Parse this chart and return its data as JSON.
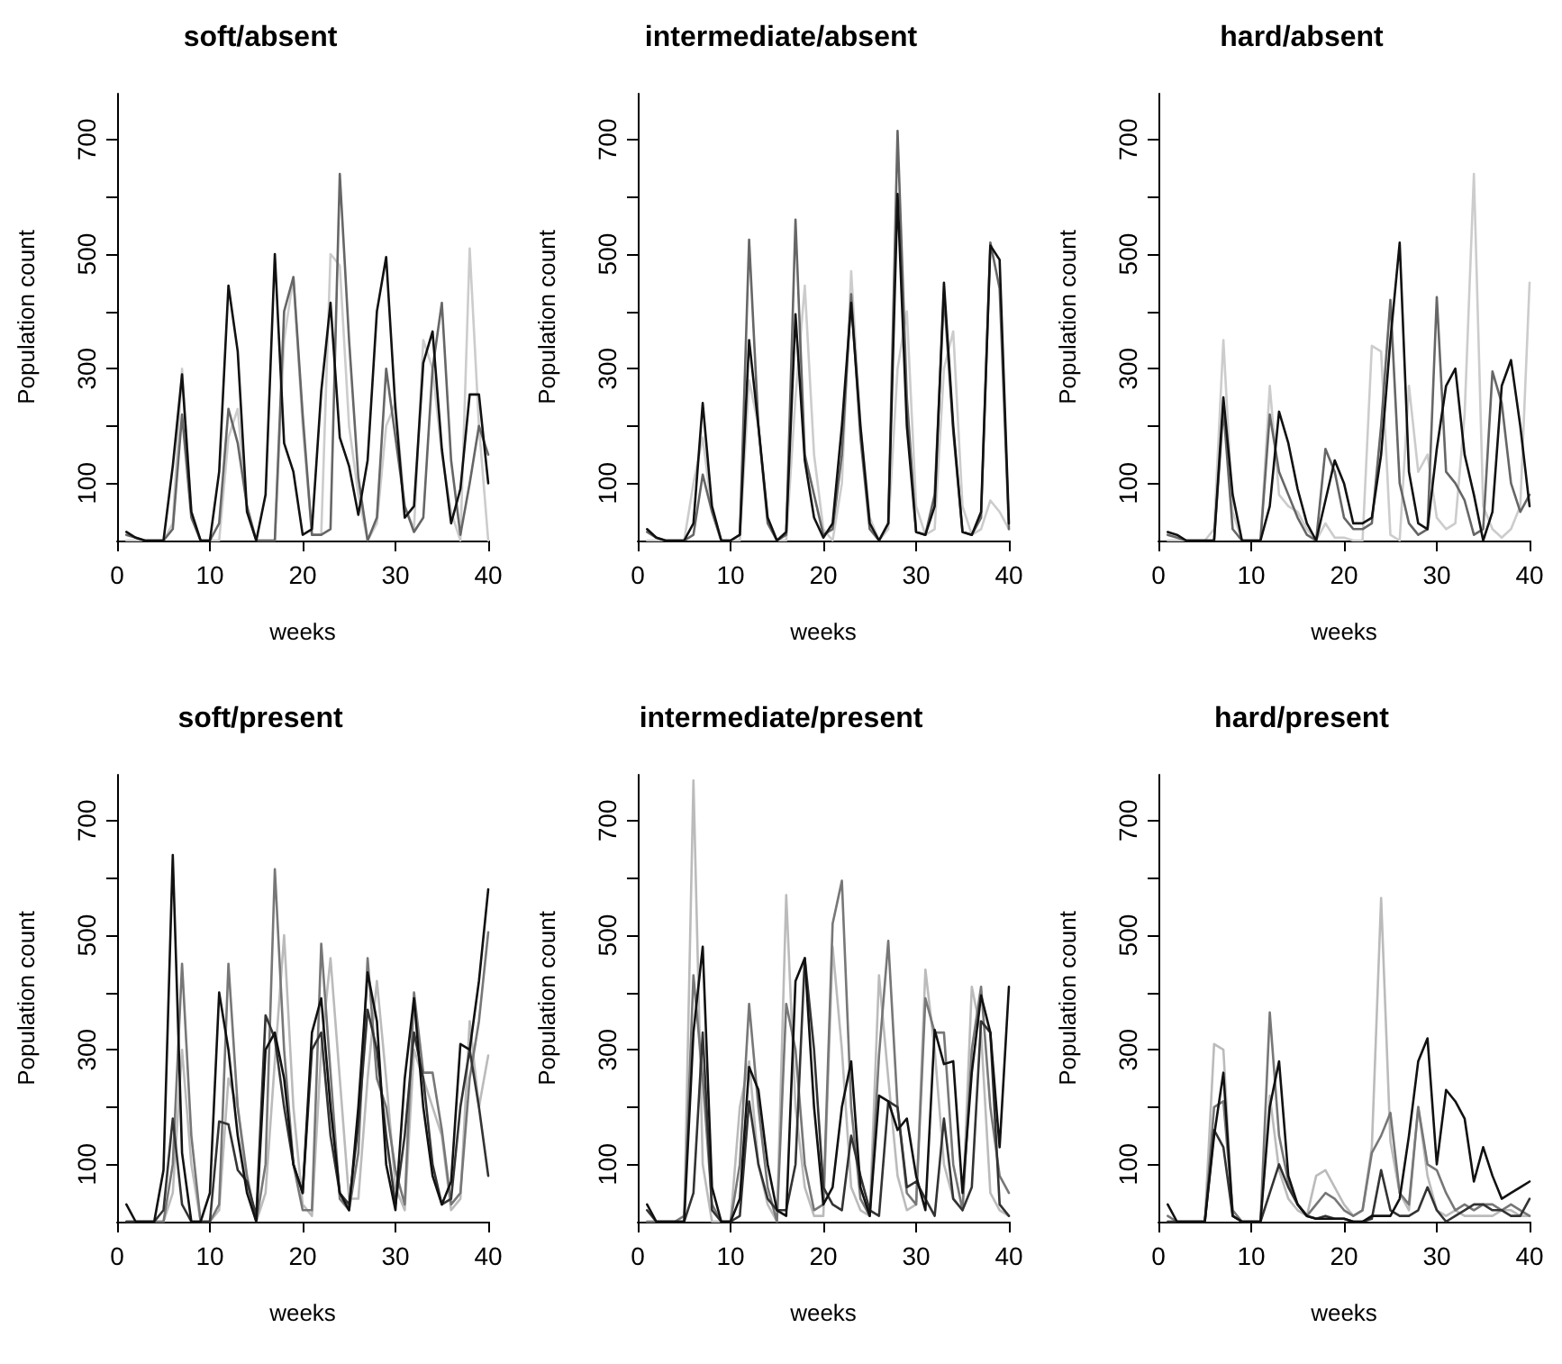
{
  "chart_data": [
    {
      "type": "line",
      "title": "soft/absent",
      "xlabel": "weeks",
      "ylabel": "Population count",
      "x": [
        1,
        2,
        3,
        4,
        5,
        6,
        7,
        8,
        9,
        10,
        11,
        12,
        13,
        14,
        15,
        16,
        17,
        18,
        19,
        20,
        21,
        22,
        23,
        24,
        25,
        26,
        27,
        28,
        29,
        30,
        31,
        32,
        33,
        34,
        35,
        36,
        37,
        38,
        39,
        40
      ],
      "xlim": [
        0,
        40
      ],
      "xticks": [
        0,
        10,
        20,
        30,
        40
      ],
      "ylim": [
        0,
        780
      ],
      "yticks": [
        100,
        {
          "value": 200,
          "label": null
        },
        300,
        {
          "value": 400,
          "label": null
        },
        500,
        {
          "value": 600,
          "label": null
        },
        700
      ],
      "series": [
        {
          "color": "#cccccc",
          "values": [
            0,
            0,
            0,
            0,
            0,
            30,
            300,
            50,
            0,
            0,
            0,
            180,
            230,
            50,
            0,
            0,
            0,
            350,
            460,
            200,
            10,
            10,
            500,
            480,
            200,
            80,
            0,
            30,
            200,
            240,
            60,
            20,
            350,
            300,
            150,
            50,
            0,
            510,
            200,
            0
          ]
        },
        {
          "color": "#666666",
          "values": [
            10,
            5,
            0,
            0,
            0,
            20,
            220,
            40,
            0,
            0,
            30,
            230,
            170,
            60,
            0,
            0,
            0,
            400,
            460,
            220,
            10,
            10,
            20,
            640,
            350,
            110,
            0,
            40,
            300,
            180,
            60,
            15,
            40,
            300,
            415,
            140,
            10,
            100,
            200,
            150
          ]
        },
        {
          "color": "#111111",
          "values": [
            15,
            5,
            0,
            0,
            0,
            130,
            290,
            50,
            0,
            0,
            120,
            445,
            330,
            50,
            0,
            80,
            500,
            170,
            120,
            10,
            20,
            260,
            415,
            180,
            130,
            45,
            140,
            400,
            495,
            230,
            40,
            60,
            310,
            365,
            160,
            30,
            90,
            255,
            255,
            100
          ]
        }
      ]
    },
    {
      "type": "line",
      "title": "intermediate/absent",
      "xlabel": "weeks",
      "ylabel": "Population count",
      "x": [
        1,
        2,
        3,
        4,
        5,
        6,
        7,
        8,
        9,
        10,
        11,
        12,
        13,
        14,
        15,
        16,
        17,
        18,
        19,
        20,
        21,
        22,
        23,
        24,
        25,
        26,
        27,
        28,
        29,
        30,
        31,
        32,
        33,
        34,
        35,
        36,
        37,
        38,
        39,
        40
      ],
      "xlim": [
        0,
        40
      ],
      "xticks": [
        0,
        10,
        20,
        30,
        40
      ],
      "ylim": [
        0,
        780
      ],
      "yticks": [
        100,
        {
          "value": 200,
          "label": null
        },
        300,
        {
          "value": 400,
          "label": null
        },
        500,
        {
          "value": 600,
          "label": null
        },
        700
      ],
      "series": [
        {
          "color": "#cccccc",
          "values": [
            0,
            0,
            0,
            0,
            0,
            100,
            180,
            50,
            0,
            0,
            0,
            280,
            200,
            40,
            0,
            0,
            250,
            445,
            150,
            20,
            0,
            100,
            470,
            200,
            40,
            0,
            20,
            300,
            400,
            60,
            10,
            20,
            300,
            365,
            60,
            10,
            20,
            70,
            50,
            20
          ]
        },
        {
          "color": "#666666",
          "values": [
            15,
            5,
            0,
            0,
            0,
            10,
            115,
            50,
            0,
            0,
            10,
            525,
            200,
            30,
            0,
            10,
            560,
            150,
            80,
            10,
            20,
            150,
            430,
            180,
            20,
            0,
            30,
            715,
            250,
            15,
            10,
            80,
            430,
            190,
            15,
            10,
            40,
            520,
            440,
            20
          ]
        },
        {
          "color": "#111111",
          "values": [
            20,
            5,
            0,
            0,
            0,
            30,
            240,
            60,
            0,
            0,
            10,
            350,
            200,
            40,
            0,
            15,
            395,
            140,
            40,
            5,
            30,
            200,
            415,
            200,
            30,
            0,
            30,
            605,
            200,
            15,
            10,
            60,
            450,
            200,
            15,
            10,
            50,
            515,
            490,
            30
          ]
        }
      ]
    },
    {
      "type": "line",
      "title": "hard/absent",
      "xlabel": "weeks",
      "ylabel": "Population count",
      "x": [
        1,
        2,
        3,
        4,
        5,
        6,
        7,
        8,
        9,
        10,
        11,
        12,
        13,
        14,
        15,
        16,
        17,
        18,
        19,
        20,
        21,
        22,
        23,
        24,
        25,
        26,
        27,
        28,
        29,
        30,
        31,
        32,
        33,
        34,
        35,
        36,
        37,
        38,
        39,
        40
      ],
      "xlim": [
        0,
        40
      ],
      "xticks": [
        0,
        10,
        20,
        30,
        40
      ],
      "ylim": [
        0,
        780
      ],
      "yticks": [
        100,
        {
          "value": 200,
          "label": null
        },
        300,
        {
          "value": 400,
          "label": null
        },
        500,
        {
          "value": 600,
          "label": null
        },
        700
      ],
      "series": [
        {
          "color": "#cccccc",
          "values": [
            0,
            0,
            0,
            0,
            0,
            20,
            350,
            50,
            0,
            0,
            0,
            270,
            80,
            60,
            50,
            20,
            0,
            30,
            5,
            5,
            0,
            0,
            340,
            330,
            10,
            0,
            270,
            120,
            150,
            40,
            20,
            30,
            220,
            640,
            60,
            20,
            5,
            20,
            60,
            450
          ]
        },
        {
          "color": "#666666",
          "values": [
            10,
            5,
            0,
            0,
            0,
            0,
            230,
            20,
            0,
            0,
            0,
            220,
            120,
            80,
            40,
            10,
            0,
            160,
            120,
            40,
            20,
            20,
            30,
            200,
            420,
            100,
            30,
            10,
            20,
            425,
            120,
            100,
            70,
            10,
            20,
            295,
            240,
            100,
            50,
            80
          ]
        },
        {
          "color": "#111111",
          "values": [
            15,
            10,
            0,
            0,
            0,
            0,
            250,
            80,
            0,
            0,
            0,
            60,
            225,
            170,
            90,
            30,
            0,
            70,
            140,
            100,
            30,
            30,
            40,
            150,
            350,
            520,
            120,
            30,
            20,
            160,
            270,
            300,
            150,
            80,
            0,
            50,
            270,
            315,
            200,
            60
          ]
        }
      ]
    },
    {
      "type": "line",
      "title": "soft/present",
      "xlabel": "weeks",
      "ylabel": "Population count",
      "x": [
        1,
        2,
        3,
        4,
        5,
        6,
        7,
        8,
        9,
        10,
        11,
        12,
        13,
        14,
        15,
        16,
        17,
        18,
        19,
        20,
        21,
        22,
        23,
        24,
        25,
        26,
        27,
        28,
        29,
        30,
        31,
        32,
        33,
        34,
        35,
        36,
        37,
        38,
        39,
        40
      ],
      "xlim": [
        0,
        40
      ],
      "xticks": [
        0,
        10,
        20,
        30,
        40
      ],
      "ylim": [
        0,
        780
      ],
      "yticks": [
        100,
        {
          "value": 200,
          "label": null
        },
        300,
        {
          "value": 400,
          "label": null
        },
        500,
        {
          "value": 600,
          "label": null
        },
        700
      ],
      "series": [
        {
          "color": "#bbbbbb",
          "values": [
            0,
            0,
            0,
            0,
            0,
            50,
            300,
            100,
            0,
            0,
            20,
            250,
            200,
            60,
            0,
            50,
            280,
            500,
            200,
            30,
            10,
            300,
            460,
            250,
            40,
            40,
            250,
            420,
            250,
            60,
            20,
            300,
            250,
            200,
            150,
            20,
            40,
            350,
            200,
            290
          ]
        },
        {
          "color": "#777777",
          "values": [
            0,
            0,
            0,
            0,
            0,
            100,
            450,
            150,
            0,
            0,
            30,
            450,
            200,
            80,
            0,
            100,
            615,
            300,
            100,
            20,
            20,
            485,
            260,
            40,
            20,
            120,
            460,
            250,
            200,
            90,
            30,
            400,
            260,
            260,
            160,
            30,
            50,
            250,
            350,
            505
          ]
        },
        {
          "color": "#333333",
          "values": [
            0,
            0,
            0,
            0,
            20,
            180,
            30,
            0,
            0,
            0,
            175,
            170,
            90,
            70,
            10,
            360,
            320,
            200,
            100,
            50,
            300,
            330,
            150,
            50,
            30,
            170,
            370,
            300,
            150,
            30,
            150,
            330,
            250,
            100,
            30,
            40,
            200,
            300,
            200,
            80
          ]
        },
        {
          "color": "#111111",
          "values": [
            30,
            0,
            0,
            0,
            90,
            640,
            120,
            0,
            0,
            50,
            400,
            300,
            150,
            50,
            0,
            300,
            330,
            250,
            100,
            50,
            330,
            390,
            200,
            50,
            20,
            200,
            435,
            350,
            100,
            20,
            250,
            390,
            200,
            80,
            30,
            70,
            310,
            300,
            420,
            580
          ]
        }
      ]
    },
    {
      "type": "line",
      "title": "intermediate/present",
      "xlabel": "weeks",
      "ylabel": "Population count",
      "x": [
        1,
        2,
        3,
        4,
        5,
        6,
        7,
        8,
        9,
        10,
        11,
        12,
        13,
        14,
        15,
        16,
        17,
        18,
        19,
        20,
        21,
        22,
        23,
        24,
        25,
        26,
        27,
        28,
        29,
        30,
        31,
        32,
        33,
        34,
        35,
        36,
        37,
        38,
        39,
        40
      ],
      "xlim": [
        0,
        40
      ],
      "xticks": [
        0,
        10,
        20,
        30,
        40
      ],
      "ylim": [
        0,
        780
      ],
      "yticks": [
        100,
        {
          "value": 200,
          "label": null
        },
        300,
        {
          "value": 400,
          "label": null
        },
        500,
        {
          "value": 600,
          "label": null
        },
        700
      ],
      "series": [
        {
          "color": "#bbbbbb",
          "values": [
            0,
            0,
            0,
            0,
            0,
            770,
            100,
            0,
            0,
            0,
            200,
            280,
            100,
            30,
            0,
            570,
            200,
            60,
            10,
            10,
            480,
            300,
            60,
            20,
            10,
            430,
            250,
            80,
            20,
            30,
            440,
            300,
            100,
            40,
            20,
            410,
            330,
            50,
            20,
            10
          ]
        },
        {
          "color": "#777777",
          "values": [
            0,
            0,
            0,
            0,
            10,
            430,
            250,
            30,
            0,
            0,
            100,
            380,
            200,
            60,
            0,
            380,
            300,
            100,
            20,
            30,
            520,
            595,
            200,
            40,
            10,
            290,
            490,
            200,
            50,
            30,
            390,
            330,
            330,
            100,
            20,
            300,
            410,
            200,
            80,
            50
          ]
        },
        {
          "color": "#333333",
          "values": [
            20,
            0,
            0,
            0,
            0,
            50,
            330,
            20,
            0,
            0,
            10,
            210,
            100,
            40,
            20,
            20,
            100,
            460,
            300,
            60,
            30,
            20,
            150,
            80,
            20,
            10,
            210,
            200,
            60,
            70,
            40,
            10,
            180,
            40,
            20,
            60,
            350,
            330,
            30,
            10
          ]
        },
        {
          "color": "#111111",
          "values": [
            30,
            0,
            0,
            0,
            0,
            330,
            480,
            60,
            0,
            0,
            40,
            270,
            230,
            100,
            20,
            10,
            420,
            460,
            200,
            30,
            60,
            200,
            280,
            60,
            10,
            220,
            210,
            160,
            180,
            80,
            20,
            335,
            275,
            280,
            50,
            260,
            395,
            330,
            130,
            410
          ]
        }
      ]
    },
    {
      "type": "line",
      "title": "hard/present",
      "xlabel": "weeks",
      "ylabel": "Population count",
      "x": [
        1,
        2,
        3,
        4,
        5,
        6,
        7,
        8,
        9,
        10,
        11,
        12,
        13,
        14,
        15,
        16,
        17,
        18,
        19,
        20,
        21,
        22,
        23,
        24,
        25,
        26,
        27,
        28,
        29,
        30,
        31,
        32,
        33,
        34,
        35,
        36,
        37,
        38,
        39,
        40
      ],
      "xlim": [
        0,
        40
      ],
      "xticks": [
        0,
        10,
        20,
        30,
        40
      ],
      "ylim": [
        0,
        780
      ],
      "yticks": [
        100,
        {
          "value": 200,
          "label": null
        },
        300,
        {
          "value": 400,
          "label": null
        },
        500,
        {
          "value": 600,
          "label": null
        },
        700
      ],
      "series": [
        {
          "color": "#bbbbbb",
          "values": [
            0,
            0,
            0,
            0,
            0,
            310,
            300,
            10,
            0,
            0,
            0,
            220,
            90,
            40,
            20,
            10,
            80,
            90,
            60,
            30,
            10,
            20,
            130,
            565,
            140,
            50,
            20,
            200,
            80,
            20,
            10,
            20,
            10,
            10,
            10,
            10,
            20,
            20,
            10,
            10
          ]
        },
        {
          "color": "#777777",
          "values": [
            10,
            0,
            0,
            0,
            0,
            200,
            210,
            20,
            0,
            0,
            0,
            365,
            150,
            70,
            30,
            10,
            30,
            50,
            40,
            20,
            10,
            20,
            120,
            150,
            190,
            50,
            30,
            200,
            100,
            90,
            50,
            20,
            30,
            20,
            30,
            30,
            20,
            30,
            20,
            10
          ]
        },
        {
          "color": "#333333",
          "values": [
            0,
            0,
            0,
            0,
            0,
            160,
            130,
            10,
            0,
            0,
            0,
            50,
            100,
            60,
            30,
            10,
            5,
            10,
            5,
            5,
            0,
            0,
            5,
            90,
            20,
            10,
            10,
            20,
            60,
            20,
            0,
            10,
            20,
            30,
            30,
            20,
            20,
            10,
            10,
            40
          ]
        },
        {
          "color": "#111111",
          "values": [
            30,
            0,
            0,
            0,
            0,
            150,
            260,
            10,
            0,
            0,
            0,
            200,
            280,
            80,
            30,
            10,
            5,
            5,
            5,
            5,
            0,
            0,
            10,
            10,
            10,
            40,
            150,
            280,
            320,
            100,
            230,
            210,
            180,
            70,
            130,
            80,
            40,
            50,
            60,
            70
          ]
        }
      ]
    }
  ]
}
